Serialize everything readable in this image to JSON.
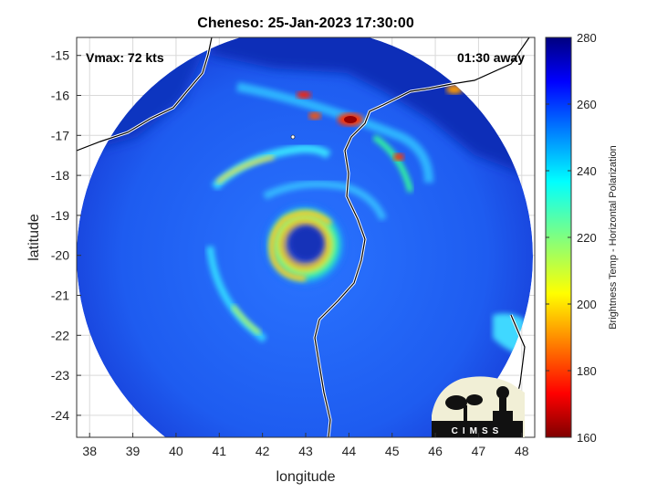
{
  "chart_data": {
    "type": "heatmap",
    "title": "Cheneso: 25-Jan-2023 17:30:00",
    "xlabel": "longitude",
    "ylabel": "latitude",
    "xlim": [
      37.7,
      48.3
    ],
    "ylim": [
      -24.55,
      -14.55
    ],
    "xticks": [
      38,
      39,
      40,
      41,
      42,
      43,
      44,
      45,
      46,
      47,
      48
    ],
    "yticks": [
      -15,
      -16,
      -17,
      -18,
      -19,
      -20,
      -21,
      -22,
      -23,
      -24
    ],
    "grid": true,
    "colorbar": {
      "label": "Brightness Temp - Horizontal Polarization",
      "range": [
        160,
        280
      ],
      "ticks": [
        280,
        260,
        240,
        220,
        200,
        180,
        160
      ]
    },
    "center": {
      "lon": 43.05,
      "lat": -19.55
    }
  },
  "annotations": {
    "vmax": "Vmax: 72 kts",
    "time_away": "01:30 away"
  },
  "logo": {
    "text": "CIMSS"
  },
  "colors": {
    "background_swath": "#1f5af0",
    "outside_fill": "#ffffff",
    "grid": "#d9d9d9"
  }
}
